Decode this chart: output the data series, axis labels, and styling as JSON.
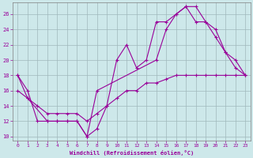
{
  "xlabel": "Windchill (Refroidissement éolien,°C)",
  "bg_color": "#cde8ea",
  "line_color": "#990099",
  "xlim": [
    -0.5,
    23.5
  ],
  "ylim": [
    9.5,
    27.5
  ],
  "xticks": [
    0,
    1,
    2,
    3,
    4,
    5,
    6,
    7,
    8,
    9,
    10,
    11,
    12,
    13,
    14,
    15,
    16,
    17,
    18,
    19,
    20,
    21,
    22,
    23
  ],
  "yticks": [
    10,
    12,
    14,
    16,
    18,
    20,
    22,
    24,
    26
  ],
  "series1_x": [
    0,
    1,
    2,
    3,
    4,
    5,
    6,
    7,
    8,
    9,
    10,
    11,
    12,
    13,
    14,
    15,
    16,
    17,
    18,
    19,
    20,
    21,
    22,
    23
  ],
  "series1_y": [
    18,
    16,
    12,
    12,
    12,
    12,
    12,
    10,
    11,
    14,
    20,
    22,
    19,
    20,
    25,
    25,
    26,
    27,
    27,
    25,
    24,
    21,
    20,
    18
  ],
  "series2_x": [
    0,
    1,
    3,
    4,
    5,
    6,
    7,
    8,
    14,
    15,
    16,
    17,
    18,
    19,
    20,
    21,
    22,
    23
  ],
  "series2_y": [
    18,
    15,
    12,
    12,
    12,
    12,
    10,
    16,
    20,
    24,
    26,
    27,
    25,
    25,
    23,
    21,
    19,
    18
  ],
  "series3_x": [
    0,
    1,
    2,
    3,
    4,
    5,
    6,
    7,
    8,
    9,
    10,
    11,
    12,
    13,
    14,
    15,
    16,
    17,
    18,
    19,
    20,
    21,
    22,
    23
  ],
  "series3_y": [
    16,
    15,
    14,
    13,
    13,
    13,
    13,
    12,
    13,
    14,
    15,
    16,
    16,
    17,
    17,
    17.5,
    18,
    18,
    18,
    18,
    18,
    18,
    18,
    18
  ],
  "grid_color": "#a0b8bb",
  "spine_color": "#808080"
}
